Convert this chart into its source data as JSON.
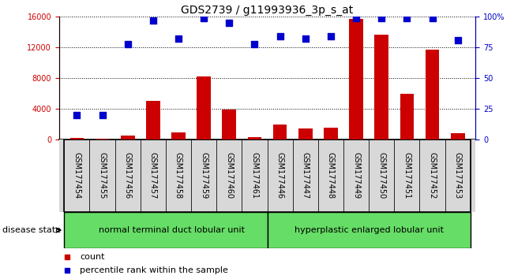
{
  "title": "GDS2739 / g11993936_3p_s_at",
  "samples": [
    "GSM177454",
    "GSM177455",
    "GSM177456",
    "GSM177457",
    "GSM177458",
    "GSM177459",
    "GSM177460",
    "GSM177461",
    "GSM177446",
    "GSM177447",
    "GSM177448",
    "GSM177449",
    "GSM177450",
    "GSM177451",
    "GSM177452",
    "GSM177453"
  ],
  "counts": [
    200,
    150,
    500,
    5000,
    900,
    8200,
    3900,
    300,
    2000,
    1400,
    1500,
    15700,
    13700,
    6000,
    11700,
    800
  ],
  "percentiles": [
    20,
    20,
    78,
    97,
    82,
    99,
    95,
    78,
    84,
    82,
    84,
    99,
    99,
    99,
    99,
    81
  ],
  "bar_color": "#cc0000",
  "dot_color": "#0000cc",
  "left_yaxis_color": "#cc0000",
  "right_yaxis_color": "#0000cc",
  "left_ylim": [
    0,
    16000
  ],
  "right_ylim": [
    0,
    100
  ],
  "left_yticks": [
    0,
    4000,
    8000,
    12000,
    16000
  ],
  "right_yticks": [
    0,
    25,
    50,
    75,
    100
  ],
  "right_yticklabels": [
    "0",
    "25",
    "50",
    "75",
    "100%"
  ],
  "group1_label": "normal terminal duct lobular unit",
  "group2_label": "hyperplastic enlarged lobular unit",
  "group1_count": 8,
  "group2_count": 8,
  "group1_color": "#66dd66",
  "group2_color": "#66dd66",
  "disease_state_label": "disease state",
  "legend_count_label": "count",
  "legend_percentile_label": "percentile rank within the sample",
  "bg_color": "#ffffff",
  "bar_width": 0.55,
  "dot_size": 40,
  "title_fontsize": 10,
  "tick_fontsize": 7,
  "label_fontsize": 8,
  "cell_color": "#d8d8d8"
}
